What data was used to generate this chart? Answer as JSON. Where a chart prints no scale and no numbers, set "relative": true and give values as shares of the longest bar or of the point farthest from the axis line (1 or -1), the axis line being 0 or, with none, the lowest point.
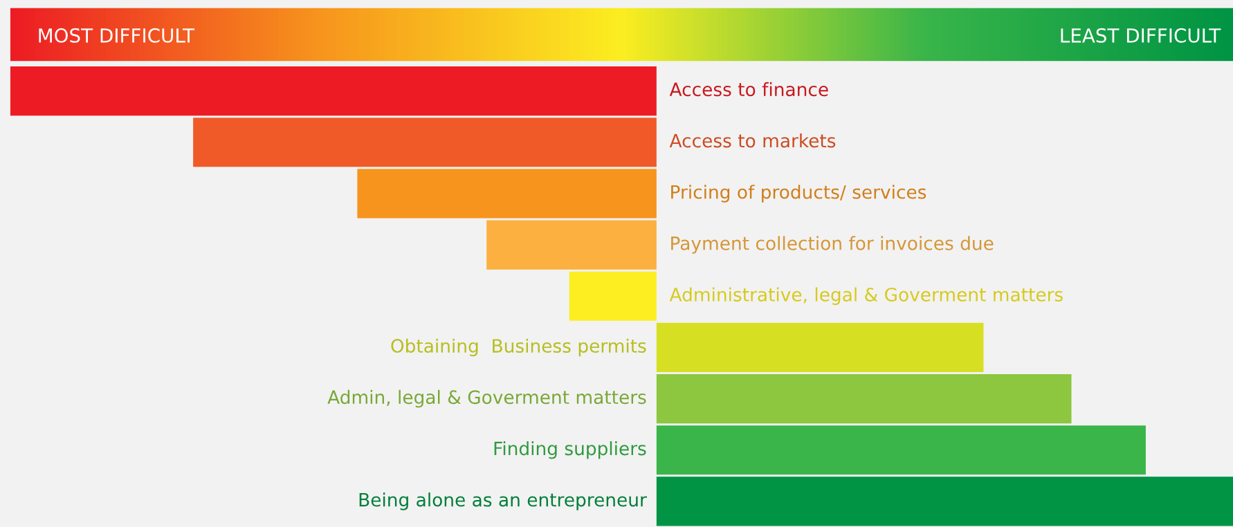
{
  "chart_data": {
    "type": "bar",
    "orientation": "horizontal",
    "relative": true,
    "categories": [
      "Access to finance",
      "Access to markets",
      "Pricing of products/ services",
      "Payment collection for invoices due",
      "Administrative, legal & Goverment matters",
      "Obtaining  Business permits",
      "Admin, legal & Goverment matters",
      "Finding suppliers",
      "Being alone as an entrepreneur"
    ],
    "values": [
      -1,
      -0.717,
      -0.463,
      -0.263,
      -0.135,
      0.506,
      0.642,
      0.757,
      0.892
    ],
    "colors": [
      "#ed1c24",
      "#f05a28",
      "#f7941d",
      "#fbb040",
      "#fcee21",
      "#d7df23",
      "#8dc63f",
      "#39b54a",
      "#009444"
    ],
    "annotations": [
      "MOST DIFFICULT",
      "LEAST DIFFICULT"
    ]
  }
}
